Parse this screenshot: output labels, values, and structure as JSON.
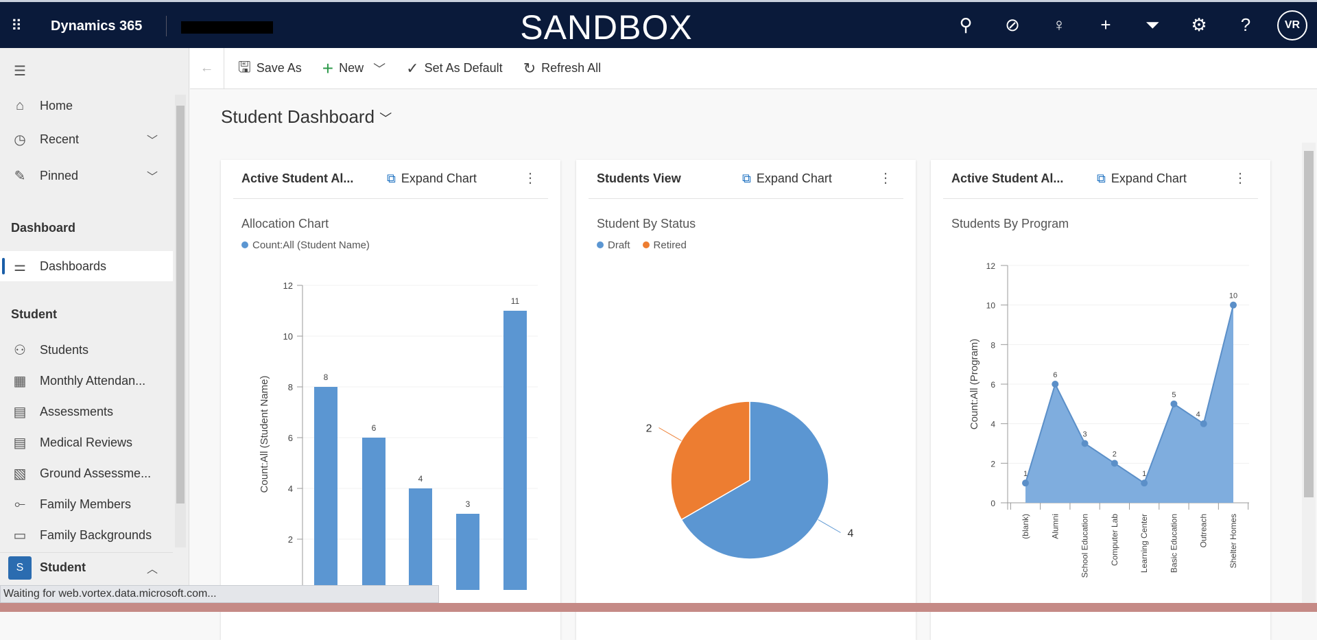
{
  "topbar": {
    "app_name": "Dynamics 365",
    "environment": "SANDBOX",
    "avatar": "VR",
    "icons": [
      "search-icon",
      "task-icon",
      "lightbulb-icon",
      "plus-icon",
      "filter-icon",
      "gear-icon",
      "help-icon"
    ],
    "glyphs": [
      "⚲",
      "⊘",
      "♀",
      "+",
      "⏷",
      "⚙",
      "?"
    ]
  },
  "command_bar": {
    "save_as": "Save As",
    "new": "New",
    "set_default": "Set As Default",
    "refresh_all": "Refresh All"
  },
  "page_title": "Student Dashboard",
  "sidebar": {
    "home": "Home",
    "recent": "Recent",
    "pinned": "Pinned",
    "section_dashboard": "Dashboard",
    "dashboards": "Dashboards",
    "section_student": "Student",
    "items": [
      "Students",
      "Monthly Attendan...",
      "Assessments",
      "Medical Reviews",
      "Ground Assessme...",
      "Family Members",
      "Family Backgrounds"
    ],
    "area": "Student",
    "area_badge": "S"
  },
  "cards": [
    {
      "header": "Active Student Al...",
      "expand": "Expand Chart",
      "more": "⋮",
      "chart_title": "Allocation Chart",
      "legend": [
        "Count:All (Student Name)"
      ]
    },
    {
      "header": "Students View",
      "expand": "Expand Chart",
      "more": "⋮",
      "chart_title": "Student By Status",
      "legend": [
        "Draft",
        "Retired"
      ]
    },
    {
      "header": "Active Student Al...",
      "expand": "Expand Chart",
      "more": "⋮",
      "chart_title": "Students By Program",
      "legend": []
    }
  ],
  "status_text": "Waiting for web.vortex.data.microsoft.com...",
  "colors": {
    "blue": "#5b96d2",
    "orange": "#ed7d31",
    "navy": "#0a1a3a"
  },
  "chart_data": [
    {
      "type": "bar",
      "title": "Allocation Chart",
      "ylabel": "Count:All (Student Name)",
      "values": [
        8,
        6,
        4,
        3,
        11
      ],
      "ylim": [
        0,
        12
      ],
      "yticks": [
        2,
        4,
        6,
        8,
        10,
        12
      ]
    },
    {
      "type": "pie",
      "title": "Student By Status",
      "labels": [
        "Draft",
        "Retired"
      ],
      "values": [
        4,
        2
      ]
    },
    {
      "type": "area",
      "title": "Students By Program",
      "ylabel": "Count:All (Program)",
      "categories": [
        "(blank)",
        "Alumni",
        "School Education",
        "Computer Lab",
        "Learning Center",
        "Basic Education",
        "Outreach",
        "Shelter Homes"
      ],
      "values": [
        1,
        6,
        3,
        2,
        1,
        5,
        4,
        10
      ],
      "ylim": [
        0,
        12
      ],
      "yticks": [
        0,
        2,
        4,
        6,
        8,
        10,
        12
      ]
    }
  ]
}
